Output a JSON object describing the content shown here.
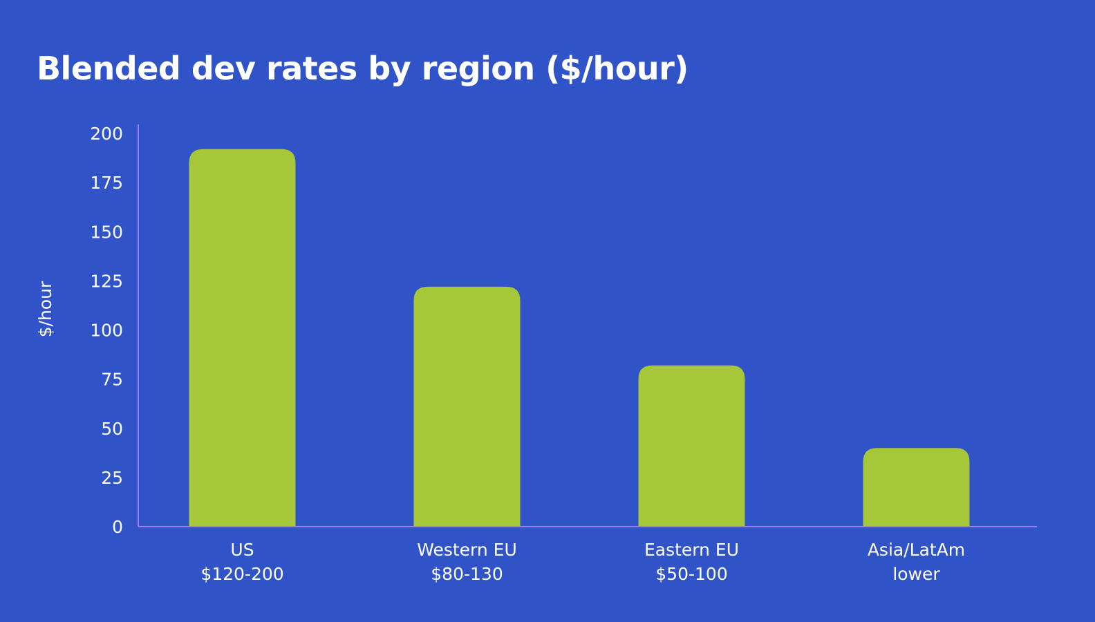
{
  "chart_data": {
    "type": "bar",
    "title": "Blended dev rates by region ($/hour)",
    "ylabel": "$/hour",
    "xlabel": "",
    "ylim": [
      0,
      200
    ],
    "yticks": [
      0,
      25,
      50,
      75,
      100,
      125,
      150,
      175,
      200
    ],
    "categories": [
      {
        "line1": "US",
        "line2": "$120-200"
      },
      {
        "line1": "Western EU",
        "line2": "$80-130"
      },
      {
        "line1": "Eastern EU",
        "line2": "$50-100"
      },
      {
        "line1": "Asia/LatAm",
        "line2": "lower"
      }
    ],
    "values": [
      192,
      122,
      82,
      40
    ],
    "legend": "none",
    "grid": false
  },
  "colors": {
    "background": "#3053C8",
    "bar": "#A6C73A",
    "axis": "#A57CF2",
    "text": "#FFFFFF"
  }
}
